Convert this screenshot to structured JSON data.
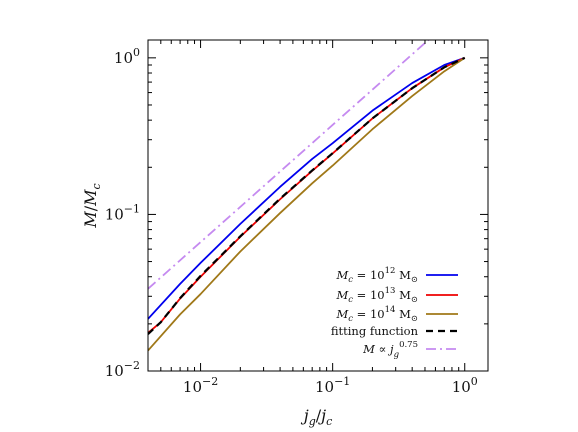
{
  "chart_data": {
    "type": "line",
    "title": "",
    "xlabel": "j_g/j_c",
    "ylabel": "M/M_c",
    "xscale": "log",
    "yscale": "log",
    "xlim": [
      0.004,
      1.5
    ],
    "ylim": [
      0.01,
      1.3
    ],
    "grid": false,
    "legend_position": "lower-right",
    "x_ticks": [
      {
        "value": 0.01,
        "base": "10",
        "exp": "−2"
      },
      {
        "value": 0.1,
        "base": "10",
        "exp": "−1"
      },
      {
        "value": 1,
        "base": "10",
        "exp": "0"
      }
    ],
    "y_ticks": [
      {
        "value": 0.01,
        "base": "10",
        "exp": "−2"
      },
      {
        "value": 0.1,
        "base": "10",
        "exp": "−1"
      },
      {
        "value": 1,
        "base": "10",
        "exp": "0"
      }
    ],
    "series": [
      {
        "name": "M_c = 10^12 M_⊙",
        "color": "#0000ee",
        "style": "solid",
        "x": [
          0.004,
          0.007,
          0.01,
          0.02,
          0.04,
          0.07,
          0.1,
          0.2,
          0.4,
          0.7,
          1.0
        ],
        "y": [
          0.0215,
          0.036,
          0.049,
          0.087,
          0.15,
          0.226,
          0.285,
          0.46,
          0.69,
          0.9,
          1.0
        ]
      },
      {
        "name": "M_c = 10^13 M_⊙",
        "color": "#ee0000",
        "style": "solid",
        "x": [
          0.004,
          0.005,
          0.007,
          0.01,
          0.02,
          0.04,
          0.07,
          0.1,
          0.2,
          0.4,
          0.7,
          1.0
        ],
        "y": [
          0.0175,
          0.0205,
          0.029,
          0.04,
          0.072,
          0.125,
          0.19,
          0.245,
          0.41,
          0.64,
          0.87,
          1.0
        ]
      },
      {
        "name": "M_c = 10^14 M_⊙",
        "color": "#a07818",
        "style": "solid",
        "x": [
          0.004,
          0.007,
          0.01,
          0.02,
          0.04,
          0.07,
          0.1,
          0.2,
          0.4,
          0.7,
          1.0
        ],
        "y": [
          0.0135,
          0.023,
          0.031,
          0.058,
          0.102,
          0.158,
          0.205,
          0.35,
          0.57,
          0.82,
          1.0
        ]
      },
      {
        "name": "fitting function",
        "color": "#000000",
        "style": "dashed",
        "x": [
          0.004,
          0.005,
          0.007,
          0.01,
          0.02,
          0.04,
          0.07,
          0.1,
          0.2,
          0.4,
          0.7,
          1.0
        ],
        "y": [
          0.0172,
          0.0205,
          0.0292,
          0.0405,
          0.0725,
          0.126,
          0.191,
          0.246,
          0.41,
          0.64,
          0.87,
          1.0
        ]
      },
      {
        "name": "M ∝ j_g^0.75",
        "color": "#c58af0",
        "style": "dashdot",
        "x": [
          0.004,
          0.7
        ],
        "y": [
          0.0335,
          1.6
        ]
      }
    ]
  },
  "legend": {
    "entries": [
      {
        "prefix": "M",
        "sub": "c",
        "mid": " = 10",
        "sup": "12",
        "suffix": " M",
        "odot": "⊙"
      },
      {
        "prefix": "M",
        "sub": "c",
        "mid": " = 10",
        "sup": "13",
        "suffix": " M",
        "odot": "⊙"
      },
      {
        "prefix": "M",
        "sub": "c",
        "mid": " = 10",
        "sup": "14",
        "suffix": " M",
        "odot": "⊙"
      },
      {
        "text": "fitting function"
      },
      {
        "prefix": "M",
        "mid": " ∝ ",
        "base2": "j",
        "sub": "g",
        "sup": "0.75"
      }
    ]
  },
  "axes": {
    "x_title": {
      "main": "j",
      "sub1": "g",
      "slash": "/",
      "main2": "j",
      "sub2": "c"
    },
    "y_title": {
      "main": "M",
      "slash": "/",
      "main2": "M",
      "sub2": "c"
    }
  }
}
